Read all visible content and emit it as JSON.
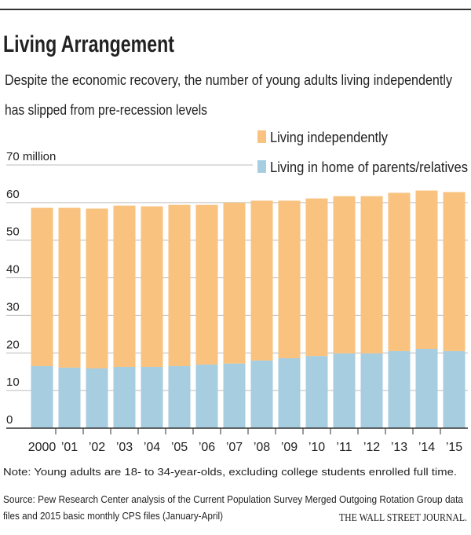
{
  "chart_data": {
    "type": "stacked_bar",
    "title": "Living Arrangement",
    "subtitle": [
      "Despite the economic recovery, the number of young adults living independently",
      "has slipped from pre-recession levels"
    ],
    "categories": [
      "2000",
      "’01",
      "’02",
      "’03",
      "’04",
      "’05",
      "’06",
      "’07",
      "’08",
      "’09",
      "’10",
      "’11",
      "’12",
      "’13",
      "’14",
      "’15"
    ],
    "series": [
      {
        "name": "Living in home of parents/relatives",
        "color": "#a6cde0",
        "values": [
          16.5,
          16.1,
          15.9,
          16.3,
          16.3,
          16.5,
          16.9,
          17.2,
          18.0,
          18.6,
          19.2,
          19.9,
          19.9,
          20.5,
          21.1,
          20.5
        ]
      },
      {
        "name": "Living independently",
        "color": "#f9c27e",
        "values": [
          42.1,
          42.5,
          42.5,
          42.9,
          42.7,
          42.9,
          42.5,
          42.8,
          42.5,
          41.9,
          41.9,
          41.8,
          41.8,
          42.1,
          42.1,
          42.3
        ]
      }
    ],
    "ylim": [
      0,
      70
    ],
    "yticks": [
      0,
      10,
      20,
      30,
      40,
      50,
      60,
      {
        "value": 70,
        "label": "70 million"
      }
    ],
    "grid": true,
    "note": "Note: Young adults are 18- to 34-year-olds, excluding college students enrolled full time.",
    "source": [
      "Source: Pew Research Center analysis of the Current Population Survey Merged Outgoing Rotation Group data",
      "files and 2015 basic monthly CPS files (January-April)"
    ],
    "publisher": "THE WALL STREET JOURNAL."
  }
}
